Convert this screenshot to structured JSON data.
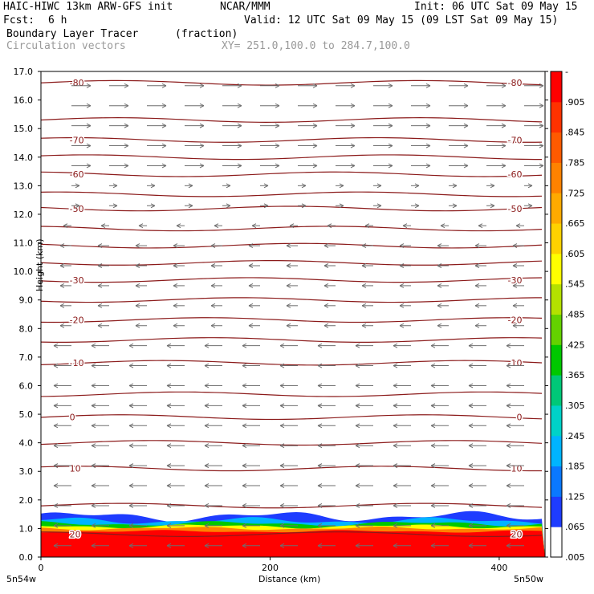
{
  "header": {
    "model": "HAIC-HIWC 13km ARW-GFS init",
    "org": "NCAR/MMM",
    "init": "Init: 06 UTC Sat 09 May 15",
    "fcst_label": "Fcst:",
    "fcst_value": "6 h",
    "valid": "Valid: 12 UTC Sat 09 May 15 (09 LST Sat 09 May 15)",
    "field": "Boundary Layer Tracer",
    "field_unit": "(fraction)",
    "vectors": "Circulation vectors",
    "xy": "XY= 251.0,100.0 to 284.7,100.0"
  },
  "colors": {
    "contour": "#8b1a1a",
    "vector": "#6e6e6e",
    "colorbar": [
      "#ffffff",
      "#1e3cff",
      "#0a78ff",
      "#00b4ff",
      "#00d2c8",
      "#00c878",
      "#00c800",
      "#64d200",
      "#b4e100",
      "#ffff00",
      "#ffd200",
      "#ffaa00",
      "#ff8200",
      "#ff5a00",
      "#ff3200",
      "#ff0000"
    ]
  },
  "chart_data": {
    "type": "heatmap",
    "xlabel": "Distance (km)",
    "ylabel": "Height (km)",
    "xlim": [
      0,
      440
    ],
    "ylim": [
      0,
      17
    ],
    "x_ticks": [
      0,
      200,
      400
    ],
    "y_ticks": [
      "0.0",
      "1.0",
      "2.0",
      "3.0",
      "4.0",
      "5.0",
      "6.0",
      "7.0",
      "8.0",
      "9.0",
      "10.0",
      "11.0",
      "12.0",
      "13.0",
      "14.0",
      "15.0",
      "16.0",
      "17.0"
    ],
    "x_end_labels": [
      "5n54w",
      "5n50w"
    ],
    "colorbar_labels": [
      "-",
      ".905",
      ".845",
      ".785",
      ".725",
      ".665",
      ".605",
      ".545",
      ".485",
      ".425",
      ".365",
      ".305",
      ".245",
      ".185",
      ".125",
      ".065",
      ".005"
    ],
    "contour_levels": [
      {
        "label": "-80",
        "height": 16.6
      },
      {
        "label": "-70",
        "height": 14.6
      },
      {
        "label": "-60",
        "height": 13.4
      },
      {
        "label": "-50",
        "height": 12.2
      },
      {
        "label": "-30",
        "height": 9.7
      },
      {
        "label": "-20",
        "height": 8.3
      },
      {
        "label": "-10",
        "height": 6.8
      },
      {
        "label": "0",
        "height": 4.9
      },
      {
        "label": "10",
        "height": 3.1
      },
      {
        "label": "20",
        "height": 0.8
      }
    ],
    "extra_contour_heights": [
      15.3,
      14.0,
      12.7,
      11.5,
      10.9,
      10.3,
      9.0,
      7.6,
      5.7,
      4.0,
      1.8
    ],
    "boundary_layer_top_km": 1.5
  }
}
